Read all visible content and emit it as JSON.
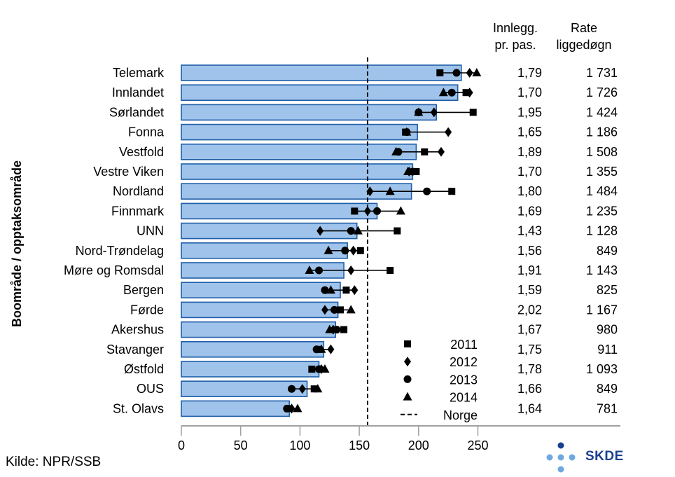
{
  "chart_data": {
    "type": "bar",
    "orientation": "horizontal",
    "ylabel": "Boområde / opptaksområde",
    "xlim": [
      0,
      260
    ],
    "xticks": [
      0,
      50,
      100,
      150,
      200,
      250
    ],
    "reference_line": {
      "name": "Norge",
      "value": 157
    },
    "categories": [
      "Telemark",
      "Innlandet",
      "Sørlandet",
      "Fonna",
      "Vestfold",
      "Vestre Viken",
      "Nordland",
      "Finnmark",
      "UNN",
      "Nord-Trøndelag",
      "Møre og Romsdal",
      "Bergen",
      "Førde",
      "Akershus",
      "Stavanger",
      "Østfold",
      "OUS",
      "St. Olavs"
    ],
    "values": [
      236,
      233,
      215,
      199,
      198,
      195,
      194,
      165,
      148,
      140,
      137,
      134,
      132,
      130,
      120,
      116,
      106,
      91
    ],
    "year_series": [
      {
        "name": "2011",
        "marker": "square",
        "values": [
          218,
          240,
          246,
          189,
          205,
          198,
          228,
          146,
          182,
          151,
          176,
          139,
          134,
          137,
          116,
          110,
          112,
          90
        ]
      },
      {
        "name": "2012",
        "marker": "diamond",
        "values": [
          243,
          243,
          213,
          225,
          219,
          192,
          159,
          157,
          117,
          145,
          143,
          146,
          121,
          128,
          126,
          118,
          102,
          93
        ]
      },
      {
        "name": "2013",
        "marker": "circle",
        "values": [
          232,
          228,
          200,
          190,
          183,
          195,
          207,
          165,
          143,
          138,
          116,
          121,
          129,
          131,
          114,
          116,
          93,
          89
        ]
      },
      {
        "name": "2014",
        "marker": "triangle",
        "values": [
          249,
          221,
          200,
          190,
          181,
          191,
          176,
          185,
          149,
          124,
          108,
          126,
          143,
          125,
          118,
          121,
          115,
          98
        ]
      }
    ],
    "table": {
      "header1": [
        "Innlegg.",
        "pr. pas."
      ],
      "header2": [
        "Rate",
        "liggedøgn"
      ],
      "col1": [
        "1,79",
        "1,70",
        "1,95",
        "1,65",
        "1,89",
        "1,70",
        "1,80",
        "1,69",
        "1,43",
        "1,56",
        "1,91",
        "1,59",
        "2,02",
        "1,67",
        "1,75",
        "1,78",
        "1,66",
        "1,64"
      ],
      "col2": [
        "1 731",
        "1 726",
        "1 424",
        "1 186",
        "1 508",
        "1 355",
        "1 484",
        "1 235",
        "1 128",
        "849",
        "1 143",
        "825",
        "1 167",
        "980",
        "911",
        "1 093",
        "849",
        "781"
      ]
    },
    "legend": {
      "placement": "bottom-right",
      "entries": [
        "2011",
        "2012",
        "2013",
        "2014",
        "Norge"
      ]
    },
    "colors": {
      "bar_fill": "#9fc3ea",
      "bar_edge": "#1f5ea8",
      "marker": "#000000"
    }
  },
  "source": "Kilde: NPR/SSB",
  "logo": {
    "text": "SKDE",
    "color": "#1a3f8f",
    "dot_color_dark": "#1a3f8f",
    "dot_color_light": "#6fa8e0"
  }
}
